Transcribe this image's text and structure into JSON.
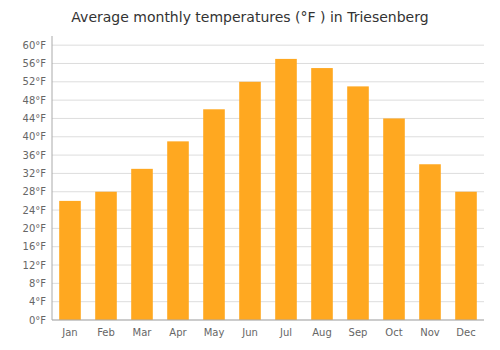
{
  "chart_data": {
    "type": "bar",
    "title": "Average monthly temperatures (°F ) in Triesenberg",
    "categories": [
      "Jan",
      "Feb",
      "Mar",
      "Apr",
      "May",
      "Jun",
      "Jul",
      "Aug",
      "Sep",
      "Oct",
      "Nov",
      "Dec"
    ],
    "values": [
      26,
      28,
      33,
      39,
      46,
      52,
      57,
      55,
      51,
      44,
      34,
      28
    ],
    "color": "#FFA820",
    "ylim": [
      0,
      62
    ],
    "yticks": [
      {
        "value": 0,
        "label": "0°F"
      },
      {
        "value": 4,
        "label": "4°F"
      },
      {
        "value": 8,
        "label": "8°F"
      },
      {
        "value": 12,
        "label": "12°F"
      },
      {
        "value": 16,
        "label": "16°F"
      },
      {
        "value": 20,
        "label": "20°F"
      },
      {
        "value": 24,
        "label": "24°F"
      },
      {
        "value": 28,
        "label": "28°F"
      },
      {
        "value": 32,
        "label": "32°F"
      },
      {
        "value": 36,
        "label": "36°F"
      },
      {
        "value": 40,
        "label": "40°F"
      },
      {
        "value": 44,
        "label": "44°F"
      },
      {
        "value": 48,
        "label": "48°F"
      },
      {
        "value": 52,
        "label": "52°F"
      },
      {
        "value": 56,
        "label": "56°F"
      },
      {
        "value": 60,
        "label": "60°F"
      }
    ],
    "grid": true
  }
}
